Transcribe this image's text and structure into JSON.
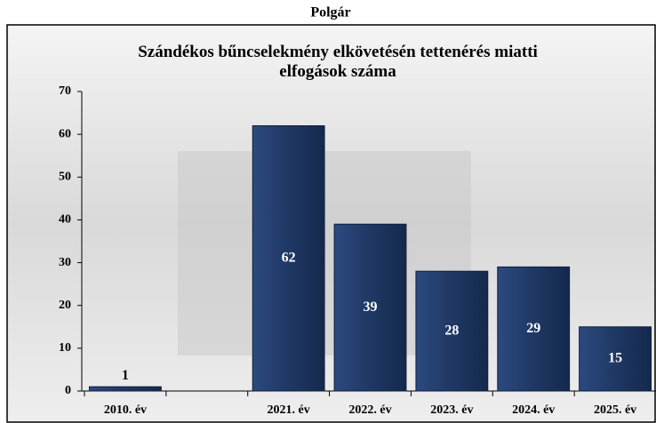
{
  "chart_data": {
    "type": "bar",
    "suptitle": "Polgár",
    "title": "Szándékos bűncselekmény elkövetésén tettenérés miatti elfogások száma",
    "categories": [
      "2010. év",
      null,
      "2021. év",
      "2022. év",
      "2023. év",
      "2024. év",
      "2025. év"
    ],
    "values": [
      1,
      null,
      62,
      39,
      28,
      29,
      15
    ],
    "color": "#1f3864",
    "ylim": [
      0,
      70
    ],
    "yticks": [
      0,
      10,
      20,
      30,
      40,
      50,
      60,
      70
    ],
    "grid": false
  }
}
